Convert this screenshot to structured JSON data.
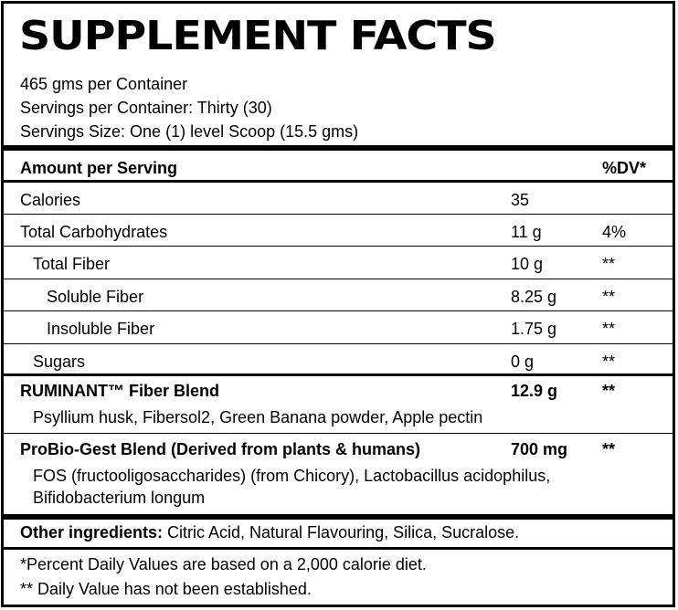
{
  "title": "SUPPLEMENT FACTS",
  "container_info": [
    "465 gms per Container",
    "Servings per Container: Thirty (30)",
    "Servings Size: One (1) level Scoop (15.5 gms)"
  ],
  "header": {
    "amount_label": "Amount per Serving",
    "dv_label": "%DV*"
  },
  "rows": [
    {
      "name": "Calories",
      "amount": "35",
      "dv": ""
    },
    {
      "name": "Total Carbohydrates",
      "amount": "11 g",
      "dv": "4%"
    },
    {
      "name": "Total Fiber",
      "amount": "10 g",
      "dv": "**"
    },
    {
      "name": "Soluble Fiber",
      "amount": "8.25 g",
      "dv": "**"
    },
    {
      "name": "Insoluble Fiber",
      "amount": "1.75 g",
      "dv": "**"
    },
    {
      "name": "Sugars",
      "amount": "0 g",
      "dv": "**"
    }
  ],
  "blends": [
    {
      "name": "RUMINANT™ Fiber Blend",
      "amount": "12.9 g",
      "dv": "**",
      "ingredients": [
        "Psyllium husk, Fibersol2, Green Banana powder, Apple pectin"
      ]
    },
    {
      "name": "ProBio-Gest Blend (Derived from plants & humans)",
      "amount": "700 mg",
      "dv": "**",
      "ingredients": [
        "FOS (fructooligosaccharides) (from Chicory), Lactobacillus acidophilus,",
        "Bifidobacterium longum"
      ]
    }
  ],
  "other_ingredients": {
    "label": "Other ingredients:",
    "text": " Citric Acid, Natural Flavouring, Silica, Sucralose."
  },
  "footnotes": [
    "*Percent Daily Values are based on a 2,000 calorie diet.",
    "** Daily Value has not been established."
  ]
}
